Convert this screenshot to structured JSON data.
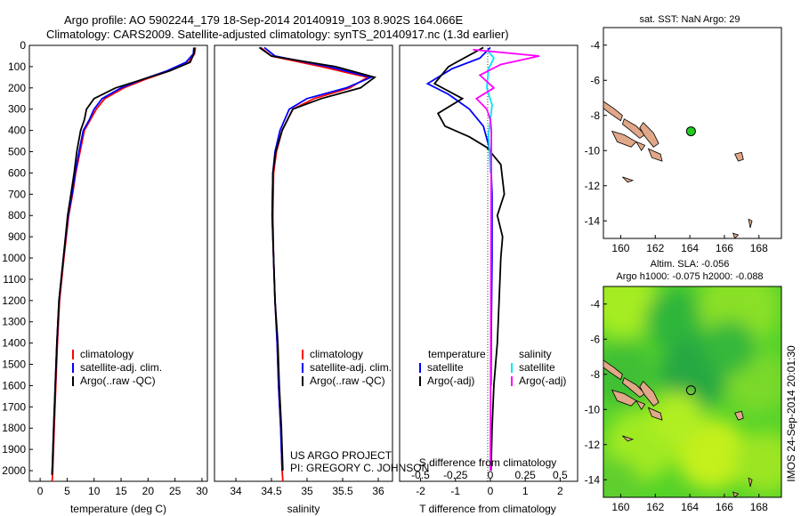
{
  "header": {
    "line1": "Argo profile: AO 5902244_179 18-Sep-2014 20140919_103 8.902S 164.066E",
    "line2": "Climatology: CARS2009. Satellite-adjusted climatology: synTS_20140917.nc (1.3d earlier)"
  },
  "colors": {
    "climatology": "#ff0000",
    "satellite": "#0000ff",
    "argo": "#000000",
    "salinity_satellite": "#00e5ff",
    "salinity_argo": "#ff00ff",
    "land": "#e0a888",
    "float_marker": "#22cc22"
  },
  "credits": {
    "project": "US ARGO PROJECT",
    "pi": "PI: GREGORY C. JOHNSON",
    "imos": "IMOS 24-Sep-2014 20:01:30"
  },
  "chart_data": [
    {
      "type": "line",
      "id": "temperature",
      "xlabel": "temperature (deg C)",
      "xlim": [
        -2,
        31
      ],
      "xticks": [
        0,
        5,
        10,
        15,
        20,
        25,
        30
      ],
      "ylim": [
        0,
        2050
      ],
      "yticks": [
        0,
        100,
        200,
        300,
        400,
        500,
        600,
        700,
        800,
        900,
        1000,
        1100,
        1200,
        1300,
        1400,
        1500,
        1600,
        1700,
        1800,
        1900,
        2000
      ],
      "y_reversed": true,
      "legend": [
        "climatology",
        "satellite-adj. clim.",
        "Argo(..raw -QC)"
      ],
      "legend_position": "lower-left",
      "series": [
        {
          "name": "climatology",
          "color": "#ff0000",
          "x": [
            28.8,
            28.6,
            27.5,
            24,
            19.5,
            15.5,
            12,
            10.4,
            9.3,
            8.2,
            7.4,
            6.6,
            6,
            5.3,
            4.4,
            3.6,
            3.2,
            2.9,
            2.6,
            2.4,
            2.3,
            2.2
          ],
          "y": [
            10,
            40,
            80,
            120,
            160,
            200,
            250,
            300,
            350,
            400,
            500,
            600,
            700,
            800,
            1000,
            1200,
            1400,
            1600,
            1800,
            1950,
            2020,
            2050
          ]
        },
        {
          "name": "satellite-adj. clim.",
          "color": "#0000ff",
          "x": [
            28.5,
            28.4,
            27,
            23.5,
            19,
            15,
            11.5,
            10,
            9.1,
            8,
            7.2,
            6.5,
            5.9,
            5.2,
            4.3,
            3.5,
            3.1,
            2.8,
            2.5,
            2.3,
            2.2
          ],
          "y": [
            10,
            40,
            80,
            120,
            160,
            200,
            250,
            300,
            350,
            400,
            500,
            600,
            700,
            800,
            1000,
            1200,
            1400,
            1600,
            1800,
            1950,
            2020
          ]
        },
        {
          "name": "Argo(..raw -QC)",
          "color": "#000000",
          "x": [
            28.6,
            28.5,
            27.8,
            24,
            19,
            14,
            10,
            8.6,
            8.2,
            7.5,
            6.8,
            6.3,
            5.7,
            5.1,
            4.3,
            3.5,
            3.1,
            2.8,
            2.5,
            2.3,
            2.2
          ],
          "y": [
            10,
            40,
            80,
            120,
            160,
            200,
            250,
            300,
            350,
            400,
            500,
            600,
            700,
            800,
            1000,
            1200,
            1400,
            1600,
            1800,
            1950,
            2020
          ]
        }
      ]
    },
    {
      "type": "line",
      "id": "salinity",
      "xlabel": "salinity",
      "xlim": [
        33.7,
        36.2
      ],
      "xticks": [
        34,
        34.5,
        35,
        35.5,
        36
      ],
      "ylim": [
        0,
        2050
      ],
      "y_reversed": true,
      "legend": [
        "climatology",
        "satellite-adj. clim.",
        "Argo(..raw -QC)"
      ],
      "legend_position": "lower-right",
      "series": [
        {
          "name": "climatology",
          "color": "#ff0000",
          "x": [
            34.35,
            34.5,
            35.2,
            35.85,
            35.6,
            35.1,
            34.8,
            34.65,
            34.57,
            34.53,
            34.52,
            34.53,
            34.55,
            34.58,
            34.6,
            34.63,
            34.65,
            34.66
          ],
          "y": [
            10,
            50,
            100,
            150,
            200,
            250,
            300,
            400,
            500,
            600,
            800,
            1000,
            1200,
            1400,
            1600,
            1800,
            2000,
            2050
          ]
        },
        {
          "name": "satellite-adj. clim.",
          "color": "#0000ff",
          "x": [
            34.4,
            34.55,
            35.3,
            35.9,
            35.55,
            35,
            34.75,
            34.62,
            34.55,
            34.52,
            34.51,
            34.53,
            34.55,
            34.58,
            34.6,
            34.63,
            34.65
          ],
          "y": [
            10,
            50,
            100,
            150,
            200,
            250,
            300,
            400,
            500,
            600,
            800,
            1000,
            1200,
            1400,
            1600,
            1800,
            2000
          ]
        },
        {
          "name": "Argo(..raw -QC)",
          "color": "#000000",
          "x": [
            34.33,
            34.5,
            35.4,
            35.95,
            35.75,
            35.2,
            34.8,
            34.65,
            34.56,
            34.52,
            34.51,
            34.53,
            34.55,
            34.59,
            34.61,
            34.64,
            34.66
          ],
          "y": [
            10,
            50,
            100,
            150,
            200,
            250,
            300,
            400,
            500,
            600,
            800,
            1000,
            1200,
            1400,
            1600,
            1800,
            2000
          ]
        }
      ]
    },
    {
      "type": "line",
      "id": "difference",
      "xlabel": "T difference from climatology",
      "xlabel_top": "S difference from climatology",
      "xlim_T": [
        -2.6,
        2.5
      ],
      "xticks_T": [
        -2,
        -1,
        0,
        1,
        2
      ],
      "xticks_S": [
        "-0.5",
        "-0.25",
        "0",
        "0.25",
        "0.5"
      ],
      "ylim": [
        0,
        2050
      ],
      "y_reversed": true,
      "legend_temperature": {
        "title": "temperature",
        "items": [
          "satellite",
          "Argo(-adj)"
        ]
      },
      "legend_salinity": {
        "title": "salinity",
        "items": [
          "satellite",
          "Argo(-adj)"
        ]
      },
      "series": [
        {
          "name": "temperature satellite",
          "color": "#0000ff",
          "x": [
            0,
            -0.3,
            -1.1,
            -1.8,
            -1.2,
            -0.6,
            -0.2,
            0,
            0.05,
            0.05,
            0.03,
            0.02
          ],
          "y": [
            10,
            60,
            110,
            180,
            230,
            300,
            380,
            500,
            700,
            1000,
            1300,
            1600
          ]
        },
        {
          "name": "temperature Argo(-adj)",
          "color": "#000000",
          "x": [
            -0.2,
            -1.2,
            -1.6,
            -0.8,
            -1.5,
            -1.3,
            -0.6,
            -0.1,
            0.3,
            0.4,
            0.2,
            0.35,
            0.3,
            0.25,
            0.2,
            0.1,
            0.05,
            0.02
          ],
          "y": [
            10,
            100,
            180,
            250,
            320,
            380,
            430,
            480,
            560,
            700,
            800,
            900,
            1000,
            1200,
            1400,
            1600,
            1800,
            2000
          ]
        },
        {
          "name": "salinity satellite",
          "color": "#00e5ff",
          "x": [
            -0.1,
            0.1,
            -0.05,
            -0.1,
            0.05,
            0,
            -0.05,
            0
          ],
          "y": [
            20,
            60,
            110,
            200,
            280,
            350,
            420,
            600
          ]
        },
        {
          "name": "salinity Argo(-adj)",
          "color": "#ff00ff",
          "x": [
            -0.5,
            1.4,
            0.3,
            -0.3,
            0.1,
            -0.4,
            -0.1,
            0,
            0.03,
            0
          ],
          "y": [
            20,
            50,
            90,
            140,
            200,
            250,
            300,
            350,
            400,
            2000
          ]
        }
      ]
    }
  ],
  "maps": [
    {
      "id": "sst",
      "title": "sat. SST: NaN Argo: 29",
      "x_ticks": [
        "160",
        "162",
        "164",
        "166",
        "168"
      ],
      "y_ticks": [
        "-4",
        "-6",
        "-8",
        "-10",
        "-12",
        "-14"
      ],
      "lon_range": [
        159,
        169.3
      ],
      "lat_range": [
        -15,
        -3
      ],
      "float_lon": 164.066,
      "float_lat": -8.902
    },
    {
      "id": "sla",
      "title": "Altim. SLA: -0.056",
      "subtitle": "Argo h1000: -0.075 h2000: -0.088",
      "x_ticks": [
        "160",
        "162",
        "164",
        "166",
        "168"
      ],
      "y_ticks": [
        "-4",
        "-6",
        "-8",
        "-10",
        "-12",
        "-14"
      ],
      "lon_range": [
        159,
        169.3
      ],
      "lat_range": [
        -15,
        -3
      ],
      "float_lon": 164.066,
      "float_lat": -8.902
    }
  ]
}
